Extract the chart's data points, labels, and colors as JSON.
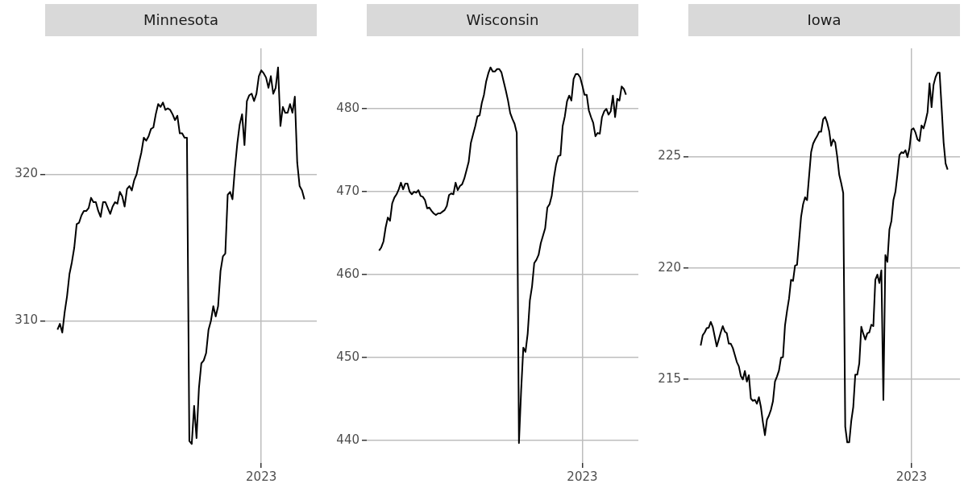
{
  "chart_data": [
    {
      "type": "line",
      "title": "Minnesota",
      "color": "#000000",
      "grid": true,
      "ylim": [
        300.3,
        328.6
      ],
      "yticks": [
        310,
        320
      ],
      "categories": [
        null,
        null,
        null,
        null,
        null,
        null,
        null,
        null,
        null,
        null,
        null,
        null,
        null,
        null,
        null,
        null,
        null,
        null,
        null,
        null,
        null,
        null,
        null,
        null,
        null,
        null,
        null,
        null,
        null,
        null,
        null,
        null,
        null,
        null,
        null,
        null,
        null,
        null,
        null,
        null,
        null,
        null,
        null,
        null,
        null,
        null,
        null,
        null,
        null,
        null,
        null,
        null,
        null,
        null,
        null,
        null,
        null,
        null,
        null,
        null,
        null,
        null,
        null,
        null,
        null,
        null,
        null,
        null,
        null,
        null,
        null,
        null,
        null,
        null,
        null,
        null,
        null,
        null,
        null,
        null,
        null,
        null,
        null,
        null,
        null,
        "2023",
        null,
        null,
        null,
        null,
        null,
        null,
        null,
        null,
        null,
        null,
        null,
        null,
        null,
        null,
        null,
        null,
        null,
        null
      ],
      "values": [
        309.4,
        309.8,
        309.2,
        310.6,
        311.7,
        313.2,
        314.0,
        315.0,
        316.6,
        316.7,
        317.2,
        317.5,
        317.5,
        317.7,
        318.4,
        318.1,
        318.1,
        317.5,
        317.1,
        318.1,
        318.1,
        317.7,
        317.3,
        317.8,
        318.1,
        318.0,
        318.8,
        318.5,
        317.8,
        319.0,
        319.2,
        318.9,
        319.6,
        320.0,
        320.8,
        321.5,
        322.5,
        322.3,
        322.6,
        323.1,
        323.2,
        324.1,
        324.8,
        324.6,
        324.9,
        324.4,
        324.5,
        324.4,
        324.1,
        323.7,
        324.0,
        322.8,
        322.8,
        322.5,
        322.5,
        301.8,
        301.6,
        304.2,
        302.0,
        305.4,
        307.1,
        307.3,
        307.8,
        309.4,
        310.0,
        311.0,
        310.3,
        311.0,
        313.4,
        314.4,
        314.6,
        318.6,
        318.8,
        318.3,
        320.4,
        322.1,
        323.4,
        324.1,
        322.0,
        325.0,
        325.4,
        325.5,
        325.0,
        325.5,
        326.7,
        327.1,
        326.9,
        326.6,
        325.9,
        326.7,
        325.5,
        325.9,
        327.3,
        323.3,
        324.6,
        324.2,
        324.2,
        324.8,
        324.2,
        325.3,
        320.8,
        319.2,
        318.9,
        318.3
      ]
    },
    {
      "type": "line",
      "title": "Wisconsin",
      "color": "#000000",
      "grid": true,
      "ylim": [
        437.3,
        487.3
      ],
      "yticks": [
        440,
        450,
        460,
        470,
        480
      ],
      "categories": [
        null,
        null,
        null,
        null,
        null,
        null,
        null,
        null,
        null,
        null,
        null,
        null,
        null,
        null,
        null,
        null,
        null,
        null,
        null,
        null,
        null,
        null,
        null,
        null,
        null,
        null,
        null,
        null,
        null,
        null,
        null,
        null,
        null,
        null,
        null,
        null,
        null,
        null,
        null,
        null,
        null,
        null,
        null,
        null,
        null,
        null,
        null,
        null,
        null,
        null,
        null,
        null,
        null,
        null,
        null,
        null,
        null,
        null,
        null,
        null,
        null,
        null,
        null,
        null,
        null,
        null,
        null,
        null,
        null,
        null,
        null,
        null,
        null,
        null,
        null,
        null,
        null,
        null,
        null,
        null,
        null,
        null,
        null,
        null,
        null,
        null,
        null,
        null,
        null,
        null,
        null,
        null,
        null,
        "2023",
        null,
        null,
        null,
        null,
        null,
        null,
        null,
        null,
        null,
        null,
        null,
        null,
        null,
        null,
        null,
        null,
        null,
        null,
        null,
        null
      ],
      "values": [
        462.9,
        463.3,
        464.0,
        465.7,
        466.9,
        466.5,
        468.6,
        469.3,
        469.7,
        470.3,
        471.1,
        470.3,
        471.0,
        471.0,
        470.0,
        469.7,
        470.0,
        469.9,
        470.2,
        469.5,
        469.4,
        469.0,
        468.0,
        468.1,
        467.7,
        467.4,
        467.2,
        467.4,
        467.4,
        467.6,
        467.8,
        468.3,
        469.6,
        469.8,
        469.7,
        471.1,
        470.2,
        470.7,
        470.9,
        471.6,
        472.6,
        473.6,
        475.9,
        476.9,
        477.9,
        479.1,
        479.2,
        480.7,
        481.7,
        483.3,
        484.3,
        485.0,
        484.5,
        484.5,
        484.8,
        484.8,
        484.4,
        483.3,
        482.2,
        481.0,
        479.5,
        478.8,
        478.2,
        477.1,
        439.7,
        446.0,
        451.2,
        450.7,
        452.9,
        456.9,
        458.6,
        461.4,
        461.8,
        462.4,
        463.8,
        464.7,
        465.6,
        468.1,
        468.5,
        469.5,
        471.7,
        473.3,
        474.3,
        474.4,
        477.9,
        479.1,
        480.9,
        481.6,
        481.0,
        483.6,
        484.2,
        484.2,
        483.8,
        482.8,
        481.7,
        481.7,
        479.8,
        479.0,
        478.3,
        476.7,
        477.1,
        477.0,
        479.0,
        479.7,
        480.0,
        479.3,
        479.7,
        481.6,
        479.0,
        481.2,
        481.0,
        482.7,
        482.4,
        481.7
      ]
    },
    {
      "type": "line",
      "title": "Iowa",
      "color": "#000000",
      "grid": true,
      "ylim": [
        211.25,
        229.85
      ],
      "yticks": [
        215,
        220,
        225
      ],
      "categories": [
        null,
        null,
        null,
        null,
        null,
        null,
        null,
        null,
        null,
        null,
        null,
        null,
        null,
        null,
        null,
        null,
        null,
        null,
        null,
        null,
        null,
        null,
        null,
        null,
        null,
        null,
        null,
        null,
        null,
        null,
        null,
        null,
        null,
        null,
        null,
        null,
        null,
        null,
        null,
        null,
        null,
        null,
        null,
        null,
        null,
        null,
        null,
        null,
        null,
        null,
        null,
        null,
        null,
        null,
        null,
        null,
        null,
        null,
        null,
        null,
        null,
        null,
        null,
        null,
        null,
        null,
        null,
        null,
        null,
        null,
        null,
        null,
        null,
        null,
        null,
        null,
        null,
        null,
        null,
        null,
        null,
        null,
        null,
        null,
        null,
        null,
        null,
        null,
        null,
        null,
        null,
        null,
        null,
        null,
        null,
        null,
        null,
        null,
        null,
        null,
        null,
        null,
        null,
        null,
        null,
        "2023",
        null,
        null,
        null,
        null,
        null,
        null,
        null,
        null,
        null,
        null,
        null,
        null,
        null,
        null,
        null,
        null,
        null,
        null
      ],
      "values": [
        216.52,
        216.98,
        217.11,
        217.3,
        217.32,
        217.58,
        217.36,
        216.92,
        216.48,
        216.79,
        217.11,
        217.39,
        217.15,
        217.07,
        216.6,
        216.6,
        216.41,
        216.1,
        215.78,
        215.59,
        215.15,
        215.0,
        215.38,
        214.9,
        215.19,
        214.14,
        214.04,
        214.08,
        213.91,
        214.2,
        213.76,
        213.07,
        212.5,
        213.19,
        213.38,
        213.64,
        214.02,
        214.9,
        215.13,
        215.4,
        215.97,
        216.0,
        217.42,
        218.06,
        218.62,
        219.47,
        219.42,
        220.1,
        220.14,
        221.21,
        222.29,
        222.85,
        223.17,
        223.04,
        224.12,
        225.19,
        225.57,
        225.76,
        225.91,
        226.11,
        226.11,
        226.67,
        226.77,
        226.52,
        226.14,
        225.48,
        225.76,
        225.63,
        225.0,
        224.18,
        223.8,
        223.36,
        212.88,
        212.18,
        212.18,
        213.13,
        213.76,
        215.21,
        215.21,
        215.72,
        217.36,
        217.05,
        216.79,
        217.07,
        217.11,
        217.45,
        217.39,
        219.47,
        219.7,
        219.32,
        219.89,
        214.08,
        220.58,
        220.27,
        221.72,
        222.1,
        223.04,
        223.42,
        224.18,
        225.06,
        225.19,
        225.15,
        225.28,
        224.97,
        225.38,
        226.2,
        226.26,
        226.07,
        225.76,
        225.69,
        226.39,
        226.26,
        226.58,
        226.99,
        228.28,
        227.21,
        228.22,
        228.56,
        228.76,
        228.76,
        227.21,
        225.63,
        224.68,
        224.41
      ]
    }
  ]
}
